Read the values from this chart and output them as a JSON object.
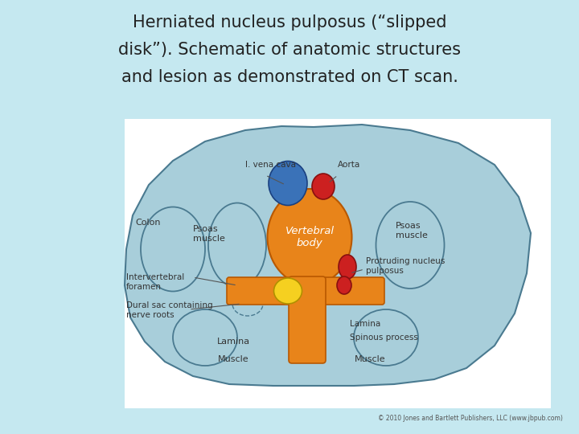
{
  "title_line1": "Herniated nucleus pulposus (“slipped",
  "title_line2": "disk”). Schematic of anatomic structures",
  "title_line3": "and lesion as demonstrated on CT scan.",
  "title_fontsize": 15,
  "title_color": "#222222",
  "bg_gradient_top": "#c5e8f0",
  "bg_gradient_bottom": "#a8d5e5",
  "panel_bg": "#ffffff",
  "outer_fill": "#a8ceda",
  "outer_edge": "#4a7a90",
  "inner_fill": "#c0dce8",
  "colon_fill": "#c5dde8",
  "colon_edge": "#4a7a90",
  "psoas_fill": "#c5dde8",
  "psoas_edge": "#4a7a90",
  "vertebral_fill": "#e8841a",
  "vertebral_edge": "#b85800",
  "vena_fill": "#3a72b8",
  "vena_edge": "#1a4080",
  "aorta_fill": "#cc2020",
  "aorta_edge": "#881010",
  "nucleus_yellow_fill": "#f5d020",
  "nucleus_yellow_edge": "#b09000",
  "nucleus_red_fill": "#cc2020",
  "nucleus_red_edge": "#881010",
  "spinous_fill": "#e8841a",
  "spinous_edge": "#b85800",
  "lower_muscle_fill": "#c5dde8",
  "lower_muscle_edge": "#4a7a90",
  "label_color": "#333333",
  "label_fontsize": 8,
  "copyright": "© 2010 Jones and Bartlett Publishers, LLC (www.jbpub.com)"
}
